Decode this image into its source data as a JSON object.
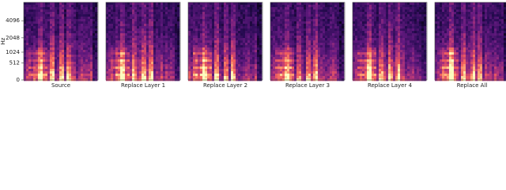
{
  "chart_data": [
    {
      "type": "spectrogram",
      "xlabel": "Source",
      "ylabel": "Hz",
      "yscale": "mel",
      "ylim": [
        0,
        8000
      ],
      "yticks": [
        0,
        512,
        1024,
        2048,
        4096
      ]
    },
    {
      "type": "spectrogram",
      "xlabel": "Replace Layer 1"
    },
    {
      "type": "spectrogram",
      "xlabel": "Replace Layer 2"
    },
    {
      "type": "spectrogram",
      "xlabel": "Replace Layer 3"
    },
    {
      "type": "spectrogram",
      "xlabel": "Replace Layer 4"
    },
    {
      "type": "spectrogram",
      "xlabel": "Replace All"
    }
  ]
}
